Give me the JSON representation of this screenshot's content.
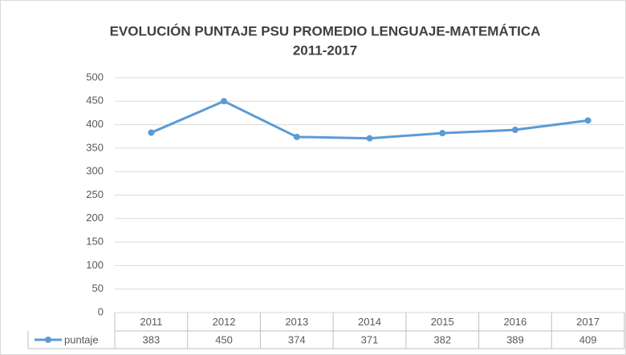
{
  "chart_data": {
    "type": "line",
    "title": [
      "EVOLUCIÓN PUNTAJE PSU PROMEDIO LENGUAJE-MATEMÁTICA",
      "2011-2017"
    ],
    "categories": [
      "2011",
      "2012",
      "2013",
      "2014",
      "2015",
      "2016",
      "2017"
    ],
    "series": [
      {
        "name": "puntaje",
        "color": "#5b9bd5",
        "values": [
          383,
          450,
          374,
          371,
          382,
          389,
          409
        ]
      }
    ],
    "ylim": [
      0,
      500
    ],
    "yticks": [
      0,
      50,
      100,
      150,
      200,
      250,
      300,
      350,
      400,
      450,
      500
    ],
    "grid": true,
    "data_table": true
  }
}
